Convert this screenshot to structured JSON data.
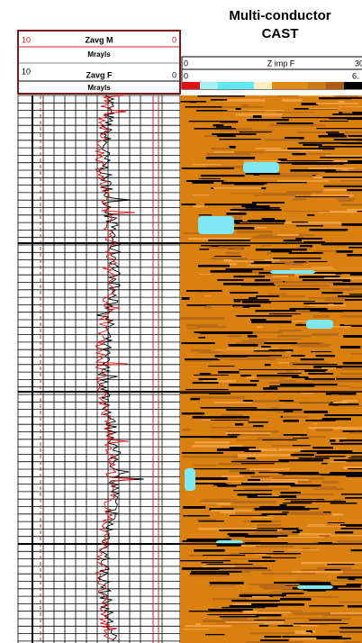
{
  "title": [
    "Multi-conductor",
    "CAST"
  ],
  "track1_header": {
    "curve_m": {
      "left": "10",
      "name": "Zavg M",
      "right": "0",
      "unit": "Mrayls"
    },
    "curve_f": {
      "left": "10",
      "name": "Zavg F",
      "right": "0",
      "unit": "Mrayls"
    }
  },
  "track2_header": {
    "curve": {
      "left": "0",
      "name": "Z imp F",
      "right": "30"
    },
    "color_scale": {
      "left": "0",
      "right": "6."
    }
  }
}
